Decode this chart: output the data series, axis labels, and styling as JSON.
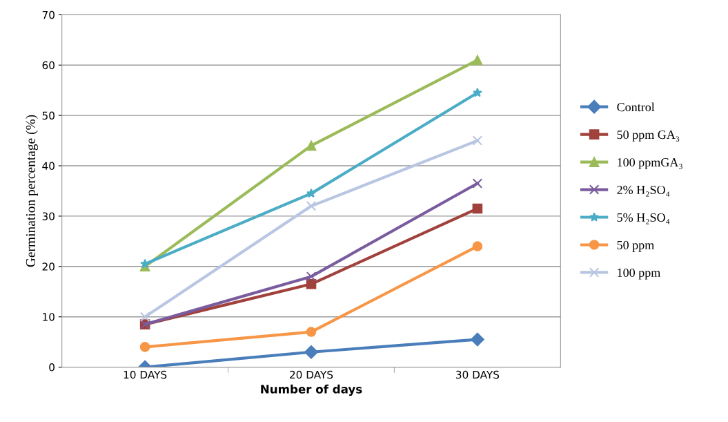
{
  "chart_data": {
    "type": "line",
    "xlabel": "Number of days",
    "ylabel": "Germination percentage (%)",
    "categories": [
      "10 DAYS",
      "20 DAYS",
      "30 DAYS"
    ],
    "series": [
      {
        "name": "Control",
        "color": "#4a7ebb",
        "marker": "diamond",
        "values": [
          0,
          3,
          5.5
        ]
      },
      {
        "name": "50 ppm GA₃",
        "color": "#a0413c",
        "marker": "square",
        "values": [
          8.5,
          16.5,
          31.5
        ]
      },
      {
        "name": "100 ppmGA₃",
        "color": "#9bbb59",
        "marker": "triangle",
        "values": [
          20,
          44,
          61
        ]
      },
      {
        "name": "2% H₂SO₄",
        "color": "#7a5c9e",
        "marker": "cross",
        "values": [
          8.5,
          18,
          36.5
        ]
      },
      {
        "name": "5% H₂SO₄",
        "color": "#4bacc6",
        "marker": "star",
        "values": [
          20.5,
          34.5,
          54.5
        ]
      },
      {
        "name": "50 ppm",
        "color": "#f79646",
        "marker": "circle",
        "values": [
          4,
          7,
          24
        ]
      },
      {
        "name": "100 ppm",
        "color": "#b9c6e2",
        "marker": "cross",
        "values": [
          10,
          32,
          45
        ]
      }
    ],
    "ylim": [
      0,
      70
    ],
    "yticks": [
      0,
      10,
      20,
      30,
      40,
      50,
      60,
      70
    ],
    "grid": "y",
    "legend": "right",
    "line_style": "solid"
  }
}
